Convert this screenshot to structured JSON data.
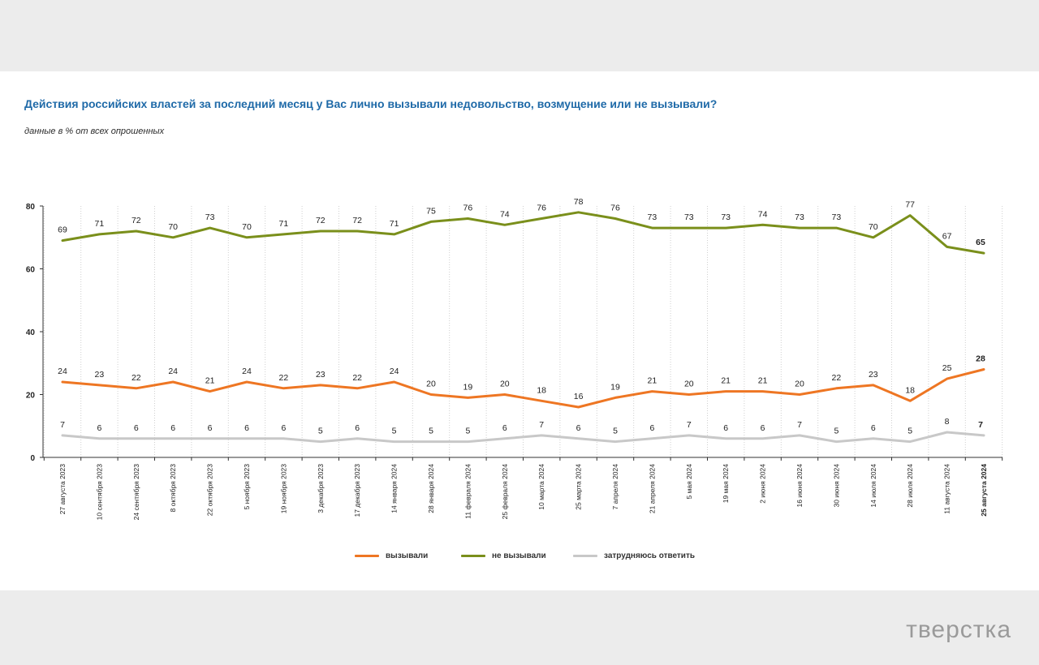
{
  "header": {
    "title": "Действия российских властей за последний месяц у Вас лично вызывали недовольство, возмущение или не вызывали?",
    "subtitle": "данные в % от всех опрошенных"
  },
  "brand": "тверстка",
  "chart_data": {
    "type": "line",
    "categories": [
      "27 августа 2023",
      "10 сентября 2023",
      "24 сентября 2023",
      "8 октября 2023",
      "22 октября 2023",
      "5 ноября 2023",
      "19 ноября 2023",
      "3 декабря 2023",
      "17 декабря 2023",
      "14 января 2024",
      "28 января 2024",
      "11 февраля 2024",
      "25 февраля 2024",
      "10 марта 2024",
      "25 марта 2024",
      "7 апреля 2024",
      "21 апреля 2024",
      "5 мая 2024",
      "19 мая 2024",
      "2 июня 2024",
      "16 июня 2024",
      "30 июня 2024",
      "14 июля 2024",
      "28 июля 2024",
      "11 августа 2024",
      "25 августа 2024"
    ],
    "series": [
      {
        "name": "вызывали",
        "color": "#ee7623",
        "values": [
          24,
          23,
          22,
          24,
          21,
          24,
          22,
          23,
          22,
          24,
          20,
          19,
          20,
          18,
          16,
          19,
          21,
          20,
          21,
          21,
          20,
          22,
          23,
          18,
          25,
          28
        ]
      },
      {
        "name": "не вызывали",
        "color": "#7a8f1b",
        "values": [
          69,
          71,
          72,
          70,
          73,
          70,
          71,
          72,
          72,
          71,
          75,
          76,
          74,
          76,
          78,
          76,
          73,
          73,
          73,
          74,
          73,
          73,
          70,
          77,
          67,
          65
        ]
      },
      {
        "name": "затрудняюсь ответить",
        "color": "#c8c8c8",
        "values": [
          7,
          6,
          6,
          6,
          6,
          6,
          6,
          5,
          6,
          5,
          5,
          5,
          6,
          7,
          6,
          5,
          6,
          7,
          6,
          6,
          7,
          5,
          6,
          5,
          8,
          7
        ]
      }
    ],
    "yticks": [
      0,
      20,
      40,
      60,
      80
    ],
    "ylim": [
      0,
      80
    ],
    "legend_position": "bottom-center",
    "grid": "vertical-dotted"
  }
}
